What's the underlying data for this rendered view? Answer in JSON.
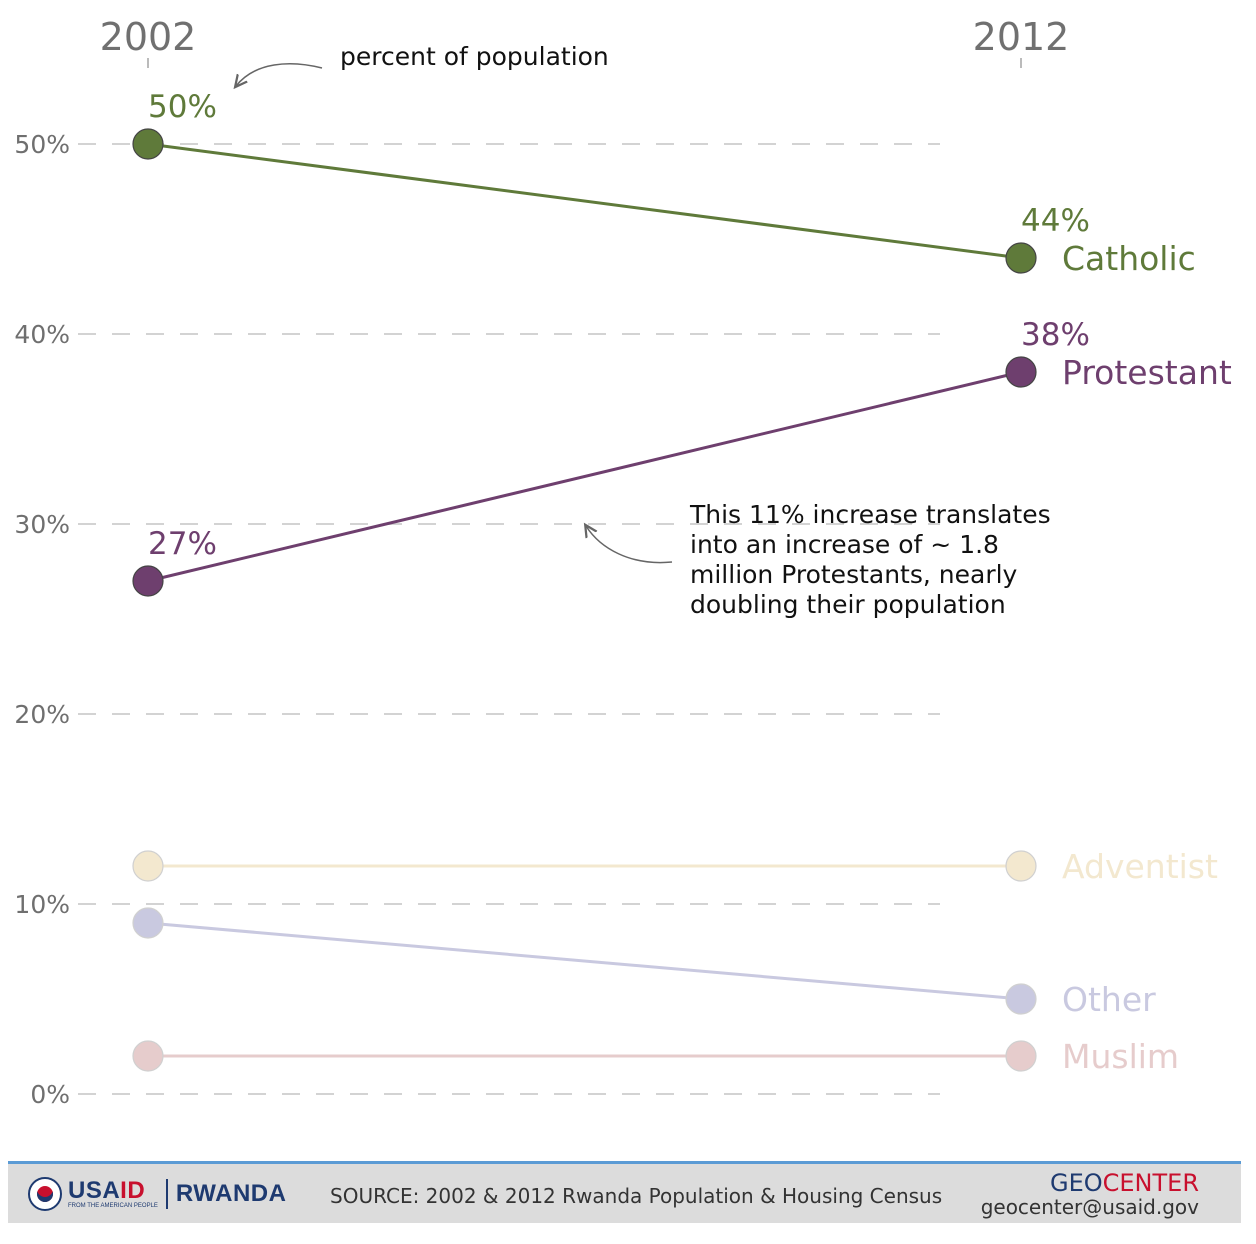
{
  "chart_data": {
    "type": "line",
    "x": [
      "2002",
      "2012"
    ],
    "y_ticks": [
      "0%",
      "10%",
      "20%",
      "30%",
      "40%",
      "50%"
    ],
    "ylim": [
      0,
      50
    ],
    "grid": "dashed horizontal",
    "series": [
      {
        "name": "Catholic",
        "values": [
          50,
          44
        ],
        "labels": [
          "50%",
          "44%"
        ],
        "color": "#5f7a3a",
        "faded": false
      },
      {
        "name": "Protestant",
        "values": [
          27,
          38
        ],
        "labels": [
          "27%",
          "38%"
        ],
        "color": "#6e3f6e",
        "faded": false
      },
      {
        "name": "Adventist",
        "values": [
          12,
          12
        ],
        "labels": [
          "",
          ""
        ],
        "color": "#f3e8cf",
        "faded": true
      },
      {
        "name": "Other",
        "values": [
          9,
          5
        ],
        "labels": [
          "",
          ""
        ],
        "color": "#c9c9e0",
        "faded": true
      },
      {
        "name": "Muslim",
        "values": [
          2,
          2
        ],
        "labels": [
          "",
          ""
        ],
        "color": "#e6cccc",
        "faded": true
      }
    ],
    "annotations": {
      "top": "percent of population",
      "protestant": [
        "This 11% increase translates",
        "into an increase of ~ 1.8",
        "million Protestants, nearly",
        "doubling their population"
      ]
    }
  },
  "footer": {
    "logo_main_a": "USA",
    "logo_main_b": "ID",
    "logo_sub": "FROM THE AMERICAN PEOPLE",
    "logo_country": "RWANDA",
    "source": "SOURCE: 2002 & 2012 Rwanda Population & Housing Census",
    "org_a": "GEO",
    "org_b": "CENTER",
    "email": "geocenter@usaid.gov"
  }
}
